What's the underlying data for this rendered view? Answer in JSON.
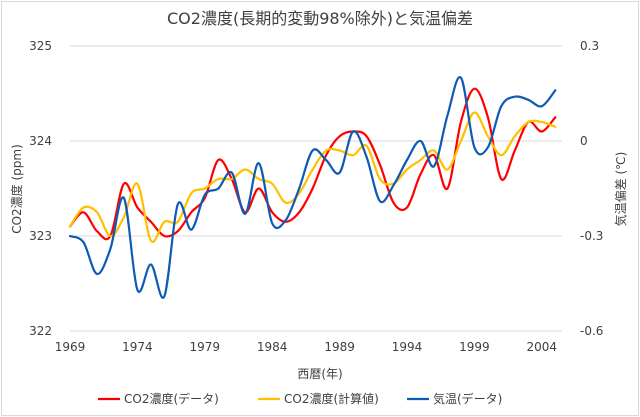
{
  "chart_data": {
    "type": "line",
    "title": "CO2濃度(長期的変動98%除外)と気温偏差",
    "xlabel": "西暦(年)",
    "ylabel_left": "CO2濃度 (ppm)",
    "ylabel_right": "気温偏差 (℃)",
    "xlim": [
      1969,
      2005.5
    ],
    "ylim_left": [
      322,
      325
    ],
    "ylim_right": [
      -0.6,
      0.3
    ],
    "xticks": [
      "1969",
      "1974",
      "1979",
      "1984",
      "1989",
      "1994",
      "1999",
      "2004"
    ],
    "xtick_values": [
      1969,
      1974,
      1979,
      1984,
      1989,
      1994,
      1999,
      2004
    ],
    "yticks_left": [
      "322",
      "323",
      "324",
      "325"
    ],
    "ytick_values_left": [
      322,
      323,
      324,
      325
    ],
    "yticks_right": [
      "-0.6",
      "-0.3",
      "0",
      "0.3"
    ],
    "ytick_values_right": [
      -0.6,
      -0.3,
      0,
      0.3
    ],
    "grid": true,
    "legend_position": "bottom",
    "series": [
      {
        "name": "CO2濃度(データ)",
        "color": "#ff0000",
        "axis": "left",
        "x": [
          1969,
          1970,
          1971,
          1972,
          1973,
          1974,
          1975,
          1976,
          1977,
          1978,
          1979,
          1980,
          1981,
          1982,
          1983,
          1984,
          1985,
          1986,
          1987,
          1988,
          1989,
          1990,
          1991,
          1992,
          1993,
          1994,
          1995,
          1996,
          1997,
          1998,
          1999,
          2000,
          2001,
          2002,
          2003,
          2004,
          2005
        ],
        "values": [
          323.1,
          323.25,
          323.05,
          323.0,
          323.55,
          323.3,
          323.15,
          323.0,
          323.05,
          323.25,
          323.4,
          323.8,
          323.6,
          323.25,
          323.5,
          323.25,
          323.15,
          323.25,
          323.5,
          323.85,
          324.05,
          324.1,
          324.05,
          323.75,
          323.35,
          323.3,
          323.65,
          323.85,
          323.5,
          324.2,
          324.55,
          324.25,
          323.6,
          323.9,
          324.2,
          324.1,
          324.25
        ]
      },
      {
        "name": "CO2濃度(計算値)",
        "color": "#ffc000",
        "axis": "left",
        "x": [
          1969,
          1970,
          1971,
          1972,
          1973,
          1974,
          1975,
          1976,
          1977,
          1978,
          1979,
          1980,
          1981,
          1982,
          1983,
          1984,
          1985,
          1986,
          1987,
          1988,
          1989,
          1990,
          1991,
          1992,
          1993,
          1994,
          1995,
          1996,
          1997,
          1998,
          1999,
          2000,
          2001,
          2002,
          2003,
          2004,
          2005
        ],
        "values": [
          323.1,
          323.3,
          323.25,
          323.0,
          323.2,
          323.55,
          322.95,
          323.15,
          323.15,
          323.45,
          323.5,
          323.6,
          323.6,
          323.7,
          323.6,
          323.55,
          323.35,
          323.45,
          323.7,
          323.9,
          323.9,
          323.85,
          323.95,
          323.6,
          323.55,
          323.7,
          323.8,
          323.9,
          323.7,
          324.0,
          324.3,
          324.05,
          323.85,
          324.05,
          324.2,
          324.2,
          324.15
        ]
      },
      {
        "name": "気温(データ)",
        "color": "#0d5bb5",
        "axis": "right",
        "x": [
          1969,
          1970,
          1971,
          1972,
          1973,
          1974,
          1975,
          1976,
          1977,
          1978,
          1979,
          1980,
          1981,
          1982,
          1983,
          1984,
          1985,
          1986,
          1987,
          1988,
          1989,
          1990,
          1991,
          1992,
          1993,
          1994,
          1995,
          1996,
          1997,
          1998,
          1999,
          2000,
          2001,
          2002,
          2003,
          2004,
          2005
        ],
        "values": [
          -0.3,
          -0.32,
          -0.42,
          -0.34,
          -0.18,
          -0.47,
          -0.39,
          -0.49,
          -0.2,
          -0.28,
          -0.17,
          -0.15,
          -0.1,
          -0.23,
          -0.07,
          -0.26,
          -0.25,
          -0.15,
          -0.03,
          -0.06,
          -0.1,
          0.03,
          -0.05,
          -0.19,
          -0.14,
          -0.06,
          0.0,
          -0.08,
          0.08,
          0.2,
          -0.02,
          -0.02,
          0.11,
          0.14,
          0.13,
          0.11,
          0.16
        ]
      }
    ]
  }
}
